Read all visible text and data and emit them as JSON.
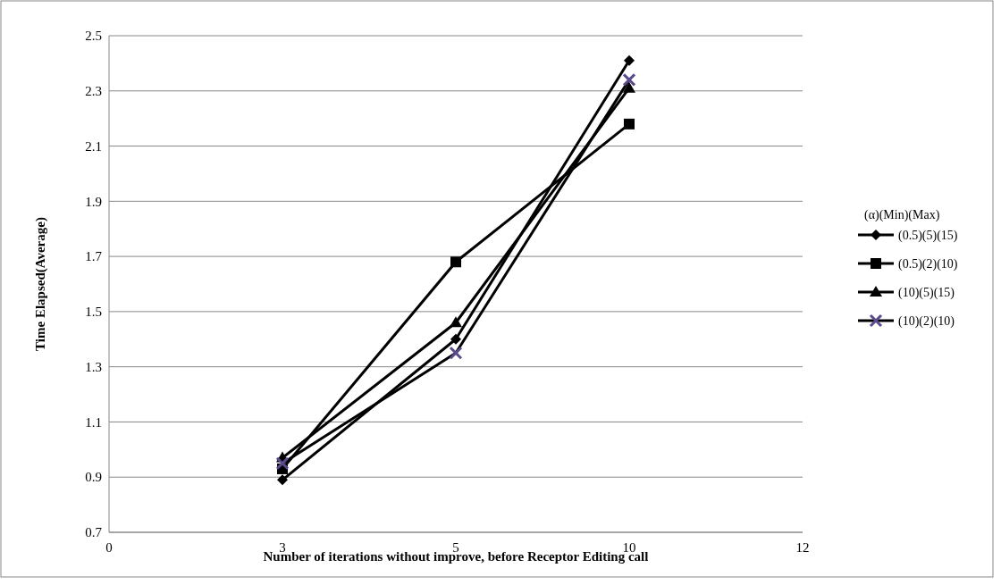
{
  "chart_data": {
    "type": "line",
    "xlabel": "Number of iterations without improve, before Receptor Editing call",
    "ylabel": "Time Elapsed(Average)",
    "legend_title": "(α)(Min)(Max)",
    "categories": [
      "0",
      "3",
      "5",
      "10",
      "12"
    ],
    "series": [
      {
        "name": "(0.5)(5)(15)",
        "color": "#000000",
        "marker": "diamond",
        "values": [
          null,
          0.89,
          1.4,
          2.41,
          null
        ]
      },
      {
        "name": "(0.5)(2)(10)",
        "color": "#000000",
        "marker": "square",
        "values": [
          null,
          0.93,
          1.68,
          2.18,
          null
        ]
      },
      {
        "name": "(10)(5)(15)",
        "color": "#000000",
        "marker": "triangle",
        "values": [
          null,
          0.97,
          1.46,
          2.31,
          null
        ]
      },
      {
        "name": "(10)(2)(10)",
        "color": "#000000",
        "marker": "cross",
        "values": [
          null,
          0.95,
          1.35,
          2.34,
          null
        ]
      }
    ],
    "ylim": [
      0.7,
      2.5
    ],
    "yticks": [
      0.7,
      0.9,
      1.1,
      1.3,
      1.5,
      1.7,
      1.9,
      2.1,
      2.3,
      2.5
    ],
    "grid": "y",
    "legend": "right",
    "line_style": "solid"
  }
}
